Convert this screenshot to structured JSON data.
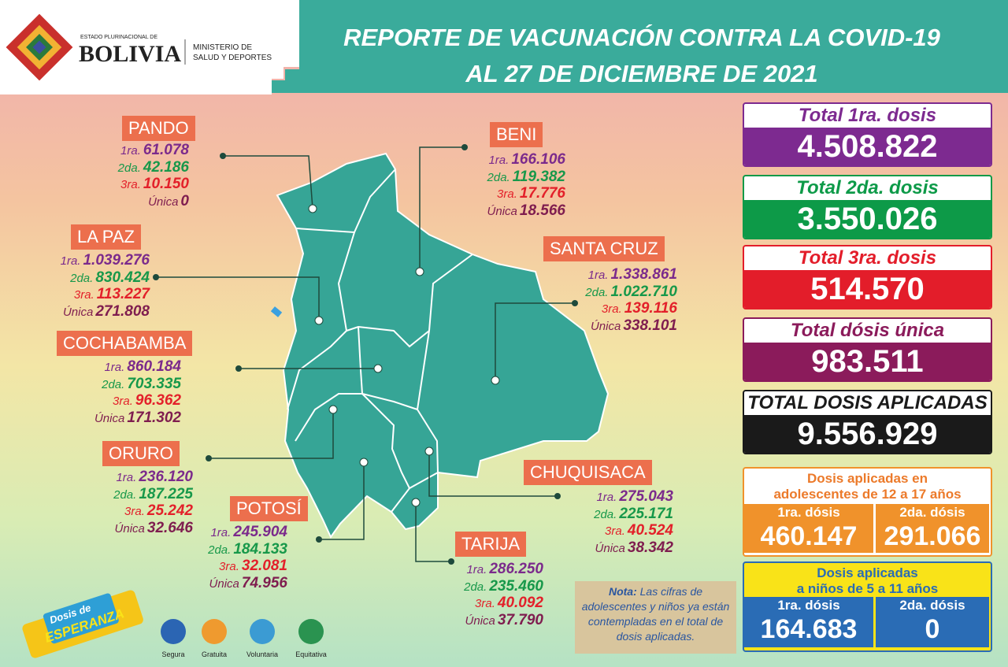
{
  "header": {
    "state": "ESTADO PLURINACIONAL DE",
    "country": "BOLIVIA",
    "ministry": [
      "MINISTERIO DE",
      "SALUD Y DEPORTES"
    ],
    "title": [
      "REPORTE DE VACUNACIÓN CONTRA LA COVID-19",
      "AL 27 DE DICIEMBRE DE 2021"
    ]
  },
  "departments": [
    {
      "name": "PANDO",
      "doses": [
        {
          "label": "1ra.",
          "value": "61.078"
        },
        {
          "label": "2da.",
          "value": "42.186"
        },
        {
          "label": "3ra.",
          "value": "10.150"
        },
        {
          "label": "Única",
          "value": "0"
        }
      ]
    },
    {
      "name": "BENI",
      "doses": [
        {
          "label": "1ra.",
          "value": "166.106"
        },
        {
          "label": "2da.",
          "value": "119.382"
        },
        {
          "label": "3ra.",
          "value": "17.776"
        },
        {
          "label": "Única",
          "value": "18.566"
        }
      ]
    },
    {
      "name": "LA PAZ",
      "doses": [
        {
          "label": "1ra.",
          "value": "1.039.276"
        },
        {
          "label": "2da.",
          "value": "830.424"
        },
        {
          "label": "3ra.",
          "value": "113.227"
        },
        {
          "label": "Única",
          "value": "271.808"
        }
      ]
    },
    {
      "name": "SANTA CRUZ",
      "doses": [
        {
          "label": "1ra.",
          "value": "1.338.861"
        },
        {
          "label": "2da.",
          "value": "1.022.710"
        },
        {
          "label": "3ra.",
          "value": "139.116"
        },
        {
          "label": "Única",
          "value": "338.101"
        }
      ]
    },
    {
      "name": "COCHABAMBA",
      "doses": [
        {
          "label": "1ra.",
          "value": "860.184"
        },
        {
          "label": "2da.",
          "value": "703.335"
        },
        {
          "label": "3ra.",
          "value": "96.362"
        },
        {
          "label": "Única",
          "value": "171.302"
        }
      ]
    },
    {
      "name": "ORURO",
      "doses": [
        {
          "label": "1ra.",
          "value": "236.120"
        },
        {
          "label": "2da.",
          "value": "187.225"
        },
        {
          "label": "3ra.",
          "value": "25.242"
        },
        {
          "label": "Única",
          "value": "32.646"
        }
      ]
    },
    {
      "name": "POTOSÍ",
      "doses": [
        {
          "label": "1ra.",
          "value": "245.904"
        },
        {
          "label": "2da.",
          "value": "184.133"
        },
        {
          "label": "3ra.",
          "value": "32.081"
        },
        {
          "label": "Única",
          "value": "74.956"
        }
      ]
    },
    {
      "name": "CHUQUISACA",
      "doses": [
        {
          "label": "1ra.",
          "value": "275.043"
        },
        {
          "label": "2da.",
          "value": "225.171"
        },
        {
          "label": "3ra.",
          "value": "40.524"
        },
        {
          "label": "Única",
          "value": "38.342"
        }
      ]
    },
    {
      "name": "TARIJA",
      "doses": [
        {
          "label": "1ra.",
          "value": "286.250"
        },
        {
          "label": "2da.",
          "value": "235.460"
        },
        {
          "label": "3ra.",
          "value": "40.092"
        },
        {
          "label": "Única",
          "value": "37.790"
        }
      ]
    }
  ],
  "totals": [
    {
      "label": "Total 1ra. dosis",
      "value": "4.508.822"
    },
    {
      "label": "Total 2da. dosis",
      "value": "3.550.026"
    },
    {
      "label": "Total 3ra. dosis",
      "value": "514.570"
    },
    {
      "label": "Total dósis única",
      "value": "983.511"
    },
    {
      "label": "TOTAL DOSIS APLICADAS",
      "value": "9.556.929"
    }
  ],
  "adolescents": {
    "title": [
      "Dosis aplicadas en",
      "adolescentes de 12 a 17 años"
    ],
    "doses": [
      {
        "label": "1ra. dósis",
        "value": "460.147"
      },
      {
        "label": "2da. dósis",
        "value": "291.066"
      }
    ]
  },
  "children": {
    "title": [
      "Dosis aplicadas",
      "a niños de 5 a 11 años"
    ],
    "doses": [
      {
        "label": "1ra. dósis",
        "value": "164.683"
      },
      {
        "label": "2da. dósis",
        "value": "0"
      }
    ]
  },
  "note": {
    "label": "Nota:",
    "text": "Las cifras de adolescentes y niños ya están contempladas en el total de dosis aplicadas."
  },
  "campaign": {
    "line1": "Dosis de",
    "line2": "ESPERANZA"
  },
  "principles": [
    "Segura",
    "Gratuita",
    "Voluntaria",
    "Equitativa"
  ]
}
